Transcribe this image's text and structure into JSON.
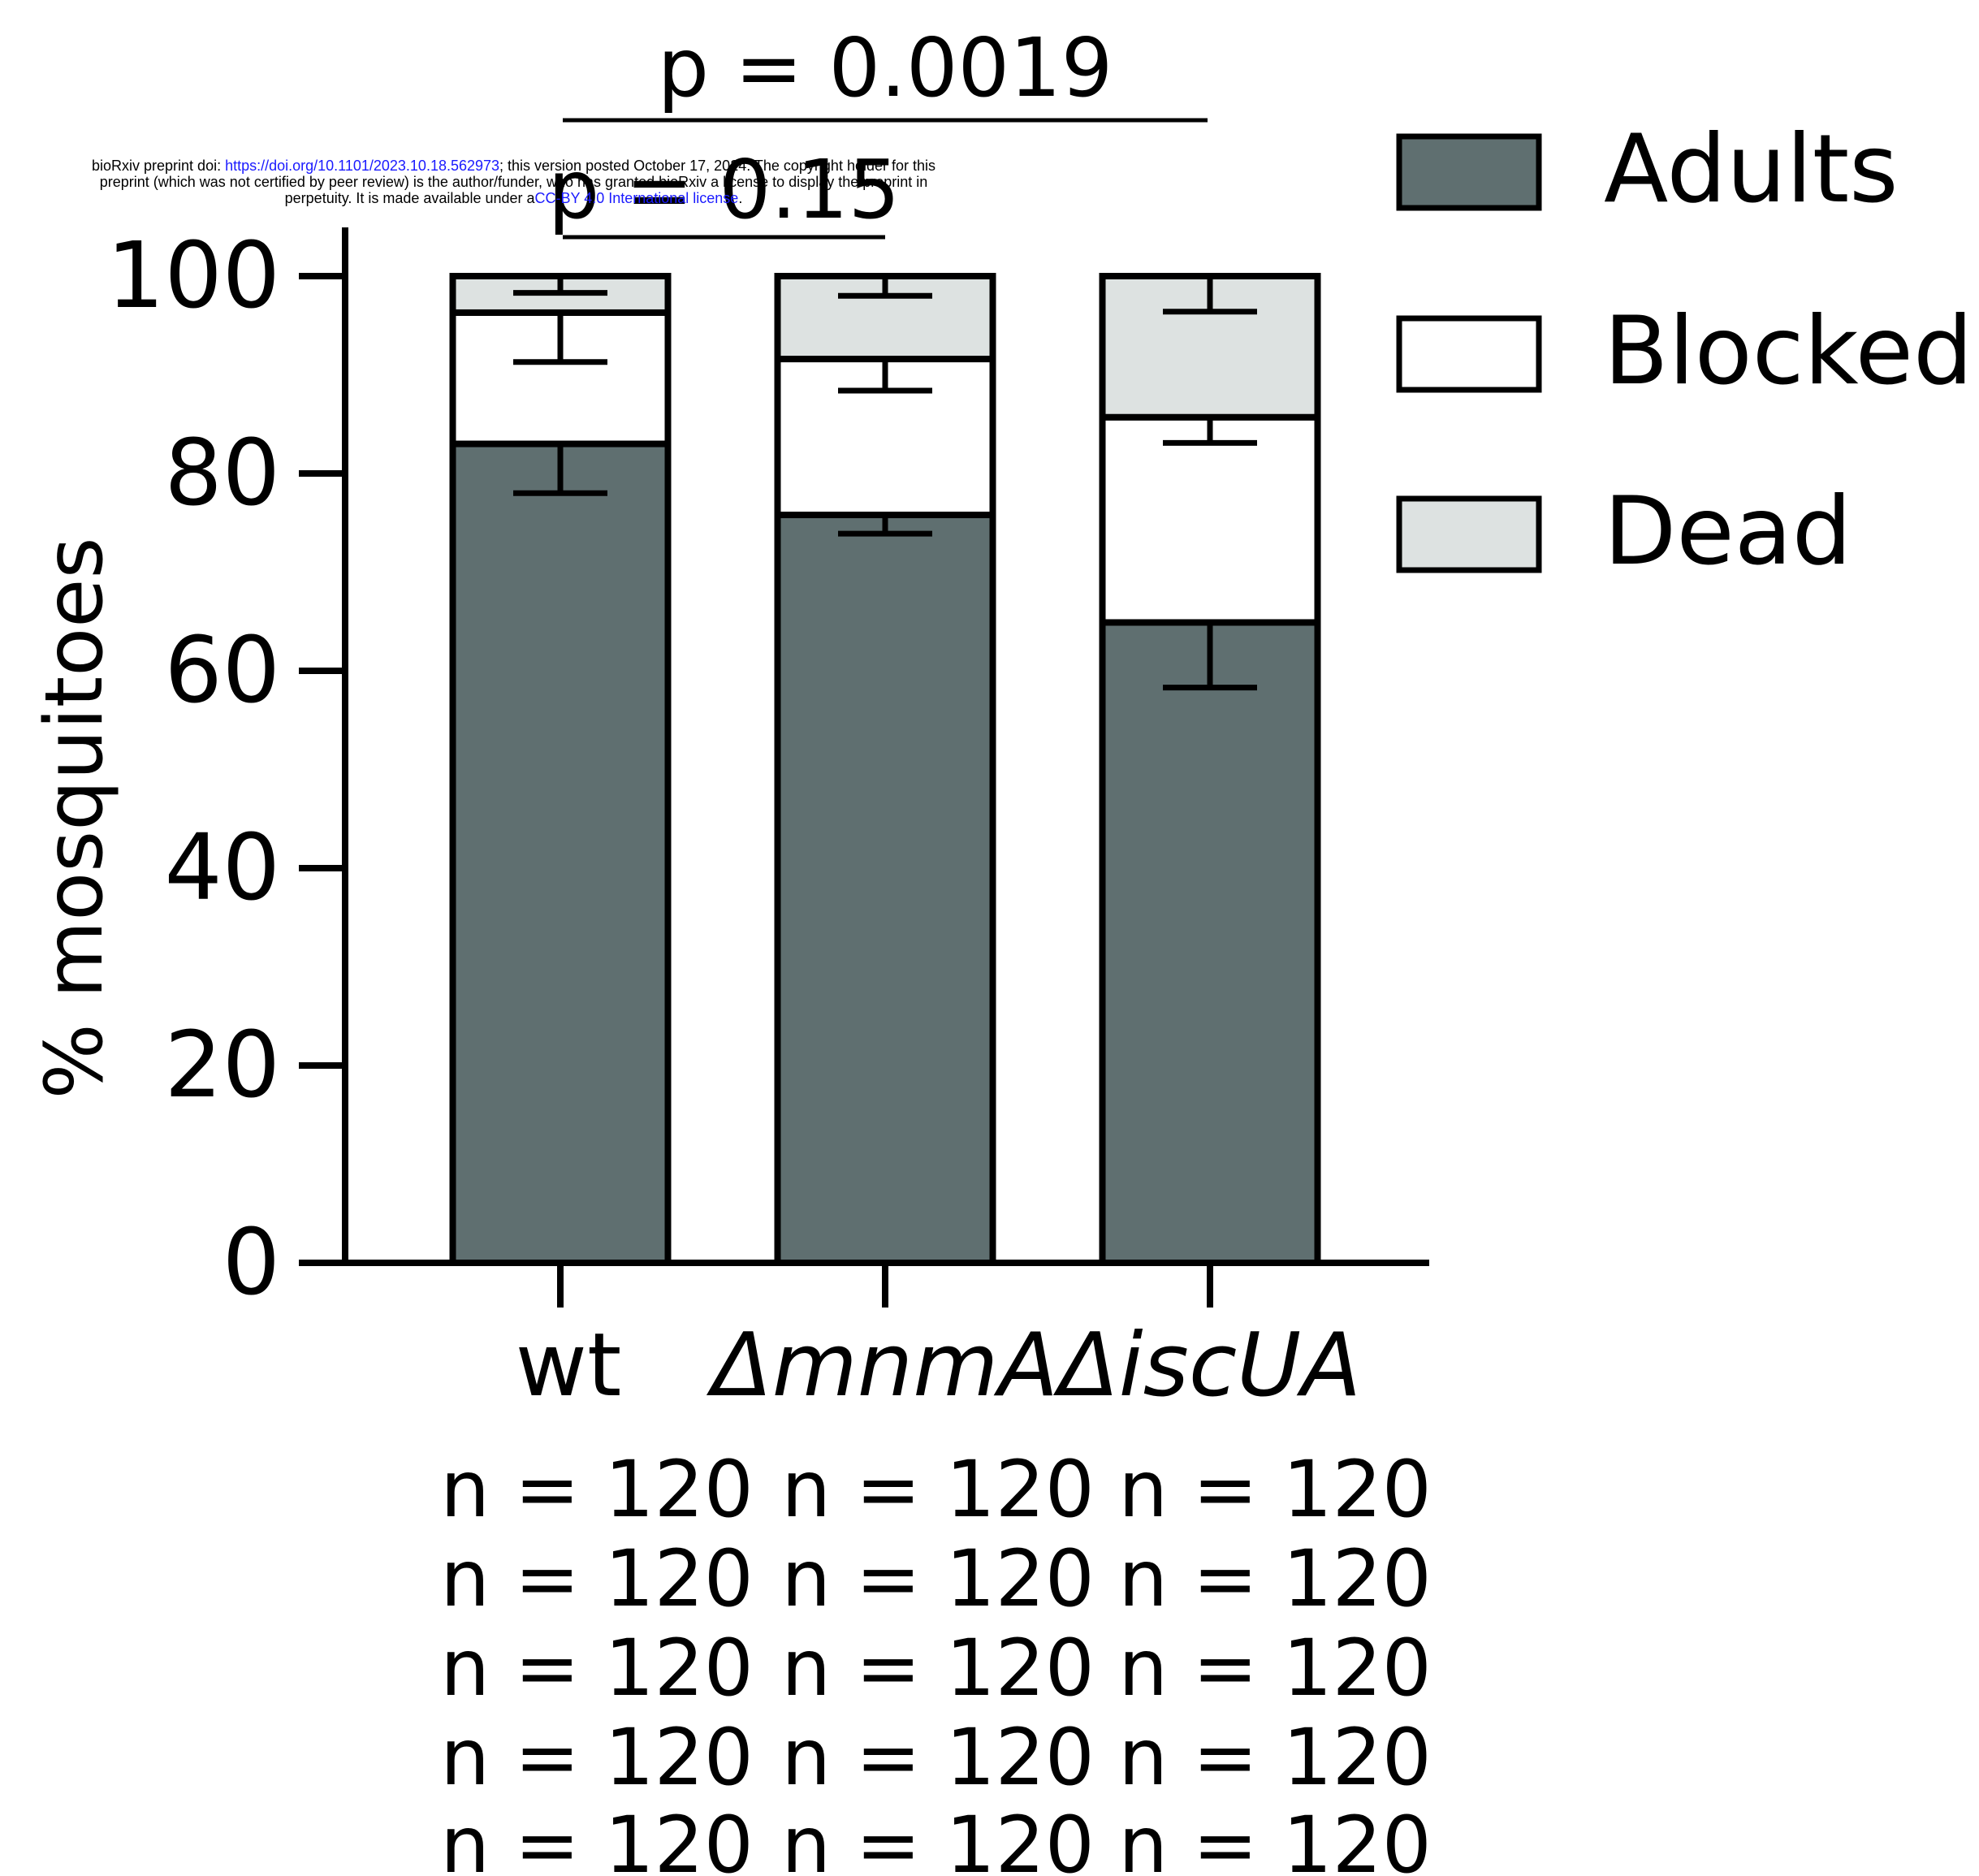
{
  "notice": {
    "line1_a": "bioRxiv preprint doi: ",
    "line1_doi": "https://doi.org/10.1101/2023.10.18.562973",
    "line1_b": "; this version posted October 17, 2024. The copyright holder for this",
    "line2": "preprint (which was not certified by peer review) is the author/funder, who has granted bioRxiv a license to display the preprint in",
    "line3_a": "perpetuity. It is made available under a",
    "line3_license": "CC-BY 4.0 International license",
    "line3_b": "."
  },
  "colors": {
    "adults": "#5f6f70",
    "blocked": "#ffffff",
    "dead": "#dde2e1",
    "outline": "#000000"
  },
  "chart_data": {
    "type": "bar",
    "stacked": true,
    "ylabel": "% mosquitoes",
    "ylim": [
      0,
      100
    ],
    "yticks": [
      0,
      20,
      40,
      60,
      80,
      100
    ],
    "categories": [
      "wt",
      "ΔmnmA",
      "ΔiscUA"
    ],
    "series": [
      {
        "name": "Adults",
        "values": [
          83.0,
          75.8,
          64.9
        ],
        "errors": [
          5.0,
          1.9,
          6.6
        ]
      },
      {
        "name": "Blocked",
        "values": [
          13.3,
          15.8,
          20.8
        ],
        "errors": [
          5.0,
          3.2,
          2.6
        ]
      },
      {
        "name": "Dead",
        "values": [
          3.7,
          8.4,
          14.3
        ],
        "errors": [
          1.7,
          2.0,
          3.6
        ]
      }
    ],
    "legend_position": "top-right",
    "comparisons": [
      {
        "groups": [
          "wt",
          "ΔiscUA"
        ],
        "label": "p = 0.0019"
      },
      {
        "groups": [
          "wt",
          "ΔmnmA"
        ],
        "label": "p = 0.15"
      }
    ],
    "sample_sizes": [
      [
        "n = 120",
        "n = 120",
        "n = 120"
      ],
      [
        "n = 120",
        "n = 120",
        "n = 120"
      ],
      [
        "n = 120",
        "n = 120",
        "n = 120"
      ],
      [
        "n = 120",
        "n = 120",
        "n = 120"
      ],
      [
        "n = 120",
        "n = 120",
        "n = 120"
      ]
    ]
  }
}
